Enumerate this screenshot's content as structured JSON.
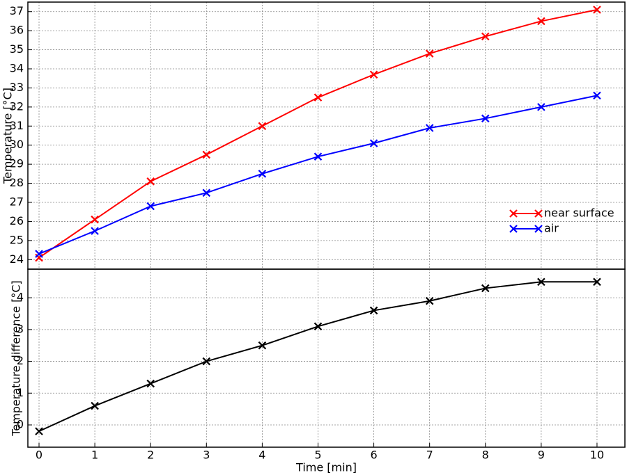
{
  "chart_data": [
    {
      "type": "line",
      "ylabel": "Temperature [°C]",
      "x": [
        0,
        1,
        2,
        3,
        4,
        5,
        6,
        7,
        8,
        9,
        10
      ],
      "series": [
        {
          "name": "near surface",
          "color": "#ff0000",
          "values": [
            24.1,
            26.1,
            28.1,
            29.5,
            31.0,
            32.5,
            33.7,
            34.8,
            35.7,
            36.5,
            37.1
          ]
        },
        {
          "name": "air",
          "color": "#0000ff",
          "values": [
            24.3,
            25.5,
            26.8,
            27.5,
            28.5,
            29.4,
            30.1,
            30.9,
            31.4,
            32.0,
            32.6
          ]
        }
      ],
      "xlim": [
        -0.2,
        10.5
      ],
      "ylim": [
        23.5,
        37.5
      ],
      "yticks": [
        24,
        25,
        26,
        27,
        28,
        29,
        30,
        31,
        32,
        33,
        34,
        35,
        36,
        37
      ],
      "grid": true,
      "legend": "right"
    },
    {
      "type": "line",
      "xlabel": "Time [min]",
      "ylabel": "Temperature difference [°C]",
      "x": [
        0,
        1,
        2,
        3,
        4,
        5,
        6,
        7,
        8,
        9,
        10
      ],
      "series": [
        {
          "color": "#000000",
          "values": [
            -0.2,
            0.6,
            1.3,
            2.0,
            2.5,
            3.1,
            3.6,
            3.9,
            4.3,
            4.5,
            4.5
          ]
        }
      ],
      "xlim": [
        -0.2,
        10.5
      ],
      "ylim": [
        -0.7,
        4.9
      ],
      "xticks": [
        0,
        1,
        2,
        3,
        4,
        5,
        6,
        7,
        8,
        9,
        10
      ],
      "yticks": [
        0,
        1,
        2,
        3,
        4
      ],
      "grid": true
    }
  ]
}
